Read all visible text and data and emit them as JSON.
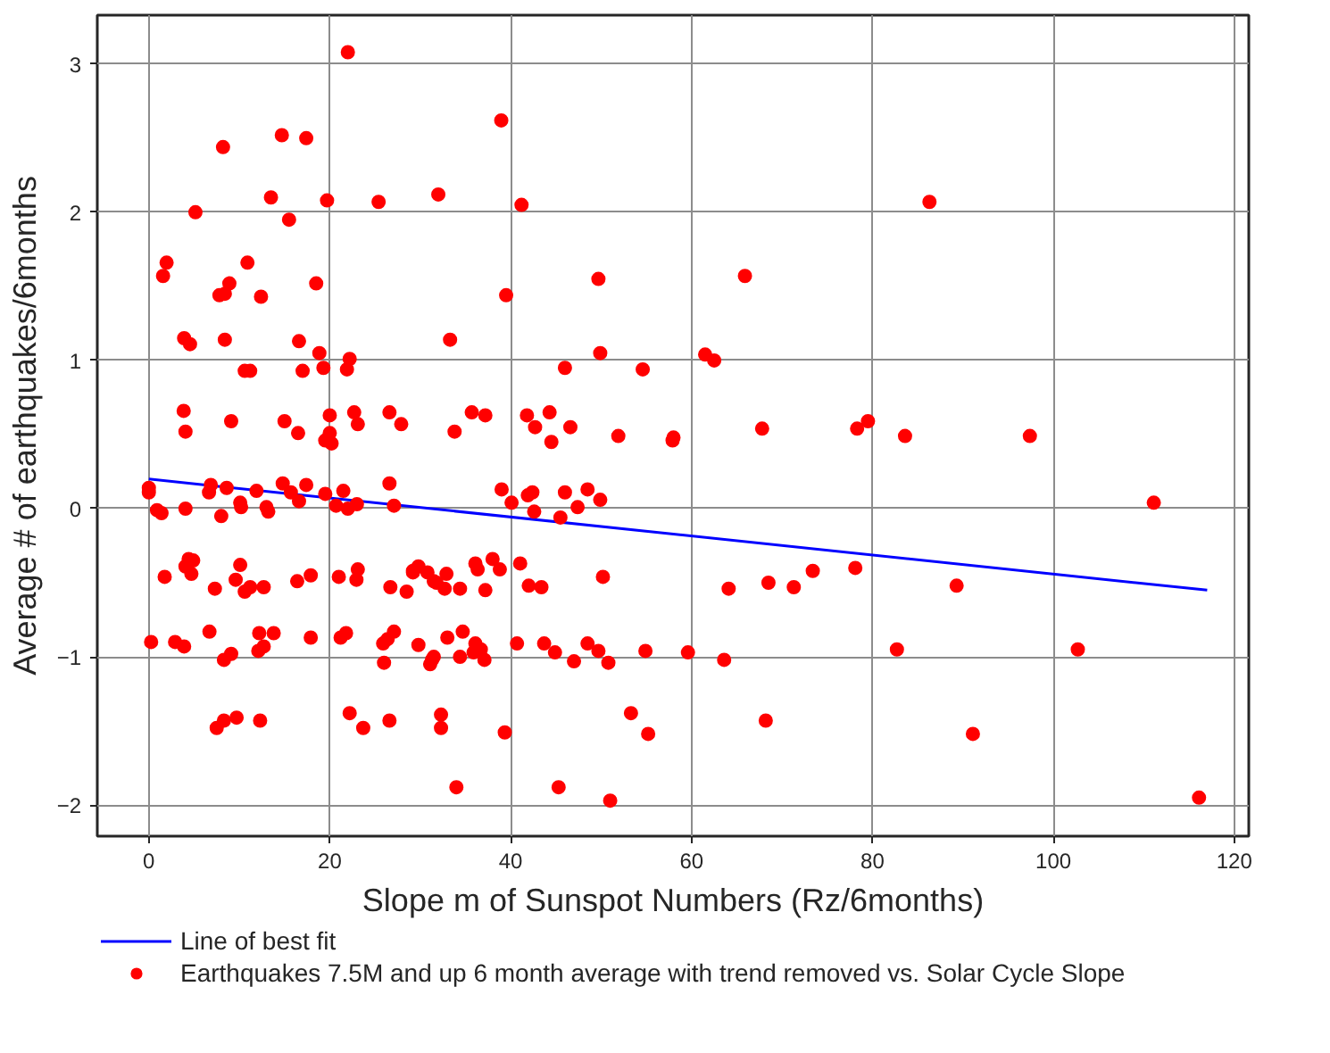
{
  "chart_data": {
    "type": "scatter",
    "xlabel": "Slope m of Sunspot Numbers (Rz/6months)",
    "ylabel": "Average # of earthquakes/6months",
    "xlim": [
      -5.7,
      121.6
    ],
    "ylim": [
      -2.21,
      3.33
    ],
    "xticks": [
      0,
      20,
      40,
      60,
      80,
      100,
      120
    ],
    "yticks": [
      -2,
      -1,
      0,
      1,
      2,
      3
    ],
    "grid": true,
    "legend": "bottom",
    "series": [
      {
        "name": "Line of best fit",
        "type": "line",
        "color": "#0000ff",
        "x": [
          0,
          117
        ],
        "values": [
          0.2,
          -0.55
        ]
      },
      {
        "name": "Earthquakes 7.5M and up 6 month average with trend removed vs. Solar Cycle Slope",
        "type": "scatter",
        "marker": "circle",
        "color": "#ff0000",
        "x": [
          4.05,
          9.1,
          15.0,
          16.5,
          19.5,
          20.2,
          20.0,
          23.1,
          27.9,
          0.0,
          0.0,
          0.9,
          1.4,
          4.05,
          6.85,
          6.65,
          8.6,
          8.0,
          10.1,
          10.2,
          11.9,
          13.0,
          13.2,
          14.8,
          15.7,
          16.6,
          17.4,
          19.5,
          20.7,
          21.5,
          22.0,
          23.0,
          26.6,
          27.1,
          1.75,
          4.4,
          4.9,
          4.05,
          4.7,
          7.3,
          10.1,
          9.6,
          10.6,
          11.2,
          12.7,
          16.4,
          17.9,
          21.0,
          23.1,
          22.95,
          26.7,
          28.5,
          29.2,
          0.25,
          2.9,
          3.9,
          6.7,
          8.3,
          9.1,
          12.2,
          13.8,
          12.1,
          12.7,
          17.9,
          21.2,
          21.8,
          25.9,
          26.4,
          27.1,
          26.0,
          7.5,
          8.3,
          9.7,
          12.3,
          22.2,
          23.7,
          26.6,
          22.0,
          8.2,
          14.7,
          17.4,
          13.5,
          19.7,
          25.4,
          5.15,
          15.5,
          1.96,
          1.57,
          10.9,
          8.9,
          7.8,
          8.4,
          12.4,
          18.5,
          3.9,
          4.55,
          8.4,
          16.6,
          18.85,
          22.2,
          21.9,
          19.3,
          10.6,
          11.2,
          17.0,
          3.85,
          20.0,
          22.7,
          26.6,
          38.96,
          32.0,
          41.2,
          49.7,
          65.9,
          39.5,
          33.3,
          49.9,
          46.0,
          54.6,
          61.5,
          62.5,
          35.7,
          37.2,
          33.8,
          41.8,
          44.3,
          42.7,
          44.5,
          46.6,
          51.9,
          57.9,
          58.0,
          67.8,
          39.0,
          40.1,
          41.9,
          42.4,
          42.6,
          46.0,
          47.4,
          45.5,
          48.5,
          49.9,
          29.2,
          29.8,
          30.8,
          31.5,
          31.8,
          32.9,
          32.7,
          34.4,
          36.1,
          36.35,
          38.0,
          38.8,
          37.2,
          41.05,
          42.0,
          43.4,
          50.2,
          64.1,
          68.5,
          71.3,
          73.4,
          29.8,
          31.3,
          31.1,
          31.5,
          33.0,
          34.7,
          34.4,
          36.1,
          35.9,
          36.7,
          37.1,
          40.7,
          43.7,
          44.9,
          47.0,
          48.5,
          49.7,
          50.8,
          54.9,
          59.6,
          63.6,
          32.3,
          32.3,
          39.35,
          53.3,
          55.2,
          68.2,
          34.0,
          45.3,
          51.0,
          86.3,
          78.3,
          79.5,
          83.6,
          97.4,
          111.1,
          78.1,
          89.3,
          82.7,
          102.7,
          91.1,
          116.1
        ],
        "values": [
          0.52,
          0.59,
          0.59,
          0.51,
          0.46,
          0.44,
          0.51,
          0.57,
          0.57,
          0.14,
          0.11,
          -0.01,
          -0.03,
          0.0,
          0.16,
          0.11,
          0.14,
          -0.05,
          0.04,
          0.01,
          0.12,
          0.01,
          -0.02,
          0.17,
          0.11,
          0.05,
          0.16,
          0.1,
          0.02,
          0.12,
          0.0,
          0.03,
          0.17,
          0.02,
          -0.46,
          -0.34,
          -0.35,
          -0.39,
          -0.44,
          -0.54,
          -0.38,
          -0.48,
          -0.56,
          -0.53,
          -0.53,
          -0.49,
          -0.45,
          -0.46,
          -0.41,
          -0.48,
          -0.53,
          -0.56,
          -0.43,
          -0.9,
          -0.9,
          -0.93,
          -0.83,
          -1.02,
          -0.98,
          -0.84,
          -0.84,
          -0.96,
          -0.93,
          -0.87,
          -0.87,
          -0.84,
          -0.91,
          -0.88,
          -0.83,
          -1.04,
          -1.48,
          -1.43,
          -1.41,
          -1.43,
          -1.38,
          -1.48,
          -1.43,
          3.08,
          2.44,
          2.52,
          2.5,
          2.1,
          2.08,
          2.07,
          2.0,
          1.95,
          1.66,
          1.57,
          1.66,
          1.52,
          1.44,
          1.45,
          1.43,
          1.52,
          1.15,
          1.11,
          1.14,
          1.13,
          1.05,
          1.01,
          0.94,
          0.95,
          0.93,
          0.93,
          0.93,
          0.66,
          0.63,
          0.65,
          0.65,
          2.62,
          2.12,
          2.05,
          1.55,
          1.57,
          1.44,
          1.14,
          1.05,
          0.95,
          0.94,
          1.04,
          1.0,
          0.65,
          0.63,
          0.52,
          0.63,
          0.65,
          0.55,
          0.45,
          0.55,
          0.49,
          0.46,
          0.48,
          0.54,
          0.13,
          0.04,
          0.09,
          0.11,
          -0.02,
          0.11,
          0.01,
          -0.06,
          0.13,
          0.06,
          -0.42,
          -0.39,
          -0.43,
          -0.49,
          -0.5,
          -0.44,
          -0.54,
          -0.54,
          -0.37,
          -0.41,
          -0.34,
          -0.41,
          -0.55,
          -0.37,
          -0.52,
          -0.53,
          -0.46,
          -0.54,
          -0.5,
          -0.53,
          -0.42,
          -0.92,
          -1.02,
          -1.05,
          -1.0,
          -0.87,
          -0.83,
          -1.0,
          -0.91,
          -0.97,
          -0.95,
          -1.02,
          -0.91,
          -0.91,
          -0.97,
          -1.03,
          -0.91,
          -0.96,
          -1.04,
          -0.96,
          -0.97,
          -1.02,
          -1.39,
          -1.48,
          -1.51,
          -1.38,
          -1.52,
          -1.43,
          -1.88,
          -1.88,
          -1.97,
          2.07,
          0.54,
          0.59,
          0.49,
          0.49,
          0.04,
          -0.4,
          -0.52,
          -0.95,
          -0.95,
          -1.52,
          -1.95
        ]
      }
    ]
  }
}
